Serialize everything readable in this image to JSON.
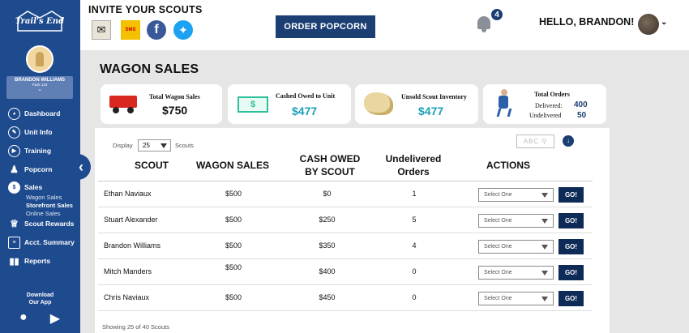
{
  "sidebar": {
    "logo_text": "Trail's End",
    "user_name": "BRANDON WILLIAMS",
    "user_pack": "Pack 123",
    "nav": [
      {
        "label": "Dashboard",
        "icon": "speedometer-icon"
      },
      {
        "label": "Unit Info",
        "icon": "info-icon"
      },
      {
        "label": "Training",
        "icon": "play-icon"
      },
      {
        "label": "Popcorn",
        "icon": "popcorn-icon"
      },
      {
        "label": "Sales",
        "icon": "dollar-icon"
      },
      {
        "label": "Scout Rewards",
        "icon": "trophy-icon"
      },
      {
        "label": "Acct. Summary",
        "icon": "ledger-icon"
      },
      {
        "label": "Reports",
        "icon": "bar-chart-icon"
      }
    ],
    "sales_sub": [
      "Wagon Sales",
      "Storefront Sales",
      "Online Sales"
    ],
    "download_line1": "Download",
    "download_line2": "Our App"
  },
  "header": {
    "invite_title": "INVITE YOUR SCOUTS",
    "sms_label": "SMS",
    "order_button": "ORDER POPCORN",
    "notification_count": "4",
    "greeting": "HELLO, BRANDON!"
  },
  "page_title": "WAGON SALES",
  "stats": {
    "wagon_sales_label": "Total Wagon Sales",
    "wagon_sales_value": "$750",
    "cash_owed_label": "Cashed Owed to Unit",
    "cash_owed_value": "$477",
    "cash_icon_text": "$",
    "unsold_label": "Unsold Scout Inventory",
    "unsold_value": "$477",
    "orders_label": "Total Orders",
    "delivered_label": "Delivered:",
    "delivered_value": "400",
    "undelivered_label": "Undelivered",
    "undelivered_value": "50"
  },
  "table": {
    "display_label": "Display",
    "display_value": "25",
    "scouts_label": "Scouts",
    "search_placeholder": "ABC",
    "headers": {
      "scout": "SCOUT",
      "wagon": "WAGON SALES",
      "cash1": "CASH OWED",
      "cash2": "BY SCOUT",
      "undel1": "Undelivered",
      "undel2": "Orders",
      "actions": "ACTIONS"
    },
    "rows": [
      {
        "scout": "Ethan Naviaux",
        "wagon": "$500",
        "cash": "$0",
        "undelivered": "1"
      },
      {
        "scout": "Stuart Alexander",
        "wagon": "$500",
        "cash": "$250",
        "undelivered": "5"
      },
      {
        "scout": "Brandon Williams",
        "wagon": "$500",
        "cash": "$350",
        "undelivered": "4"
      },
      {
        "scout": "Mitch Manders",
        "wagon": "$500",
        "cash": "$400",
        "undelivered": "0"
      },
      {
        "scout": "Chris Naviaux",
        "wagon": "$500",
        "cash": "$450",
        "undelivered": "0"
      }
    ],
    "select_placeholder": "Select One",
    "go_label": "GO!",
    "showing": "Showing 25 of 40 Scouts"
  },
  "colors": {
    "sidebar": "#1e4a8e",
    "primary": "#1b3f73",
    "accent_teal": "#1aa0b8"
  }
}
